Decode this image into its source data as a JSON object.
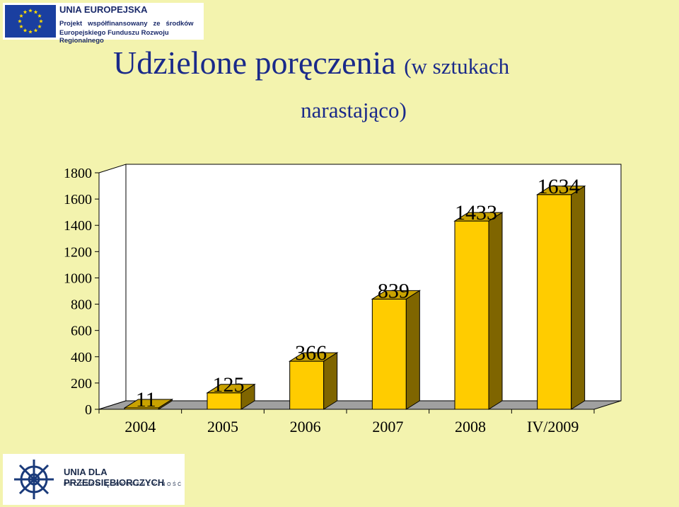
{
  "header": {
    "logo_title": "UNIA EUROPEJSKA",
    "logo_line1": "Projekt   współfinansowany   ze   środków",
    "logo_line2": "Europejskiego Funduszu Rozwoju Regionalnego"
  },
  "footer": {
    "logo_title": "UNIA DLA PRZEDSIĘBIORCZYCH",
    "logo_subtitle": "PROGRAM KONKURENCYJNOŚĆ"
  },
  "chart_data": {
    "type": "bar",
    "title": "Udzielone poręczenia",
    "title_suffix": "(w sztukach",
    "title_line2": "narastająco)",
    "categories": [
      "2004",
      "2005",
      "2006",
      "2007",
      "2008",
      "IV/2009"
    ],
    "values": [
      11,
      125,
      366,
      839,
      1433,
      1634
    ],
    "data_labels": [
      "11",
      "125",
      "366",
      "839",
      "1433",
      "1634"
    ],
    "ylim": [
      0,
      1800
    ],
    "yticks": [
      "0",
      "200",
      "400",
      "600",
      "800",
      "1000",
      "1200",
      "1400",
      "1600",
      "1800"
    ],
    "xlabel": "",
    "ylabel": "",
    "grid": false,
    "colors": {
      "bar_front": "#ffcc00",
      "bar_side": "#7f6500",
      "bar_top": "#c9a200",
      "floor": "#a0a0a0",
      "wall": "#ffffff"
    }
  }
}
